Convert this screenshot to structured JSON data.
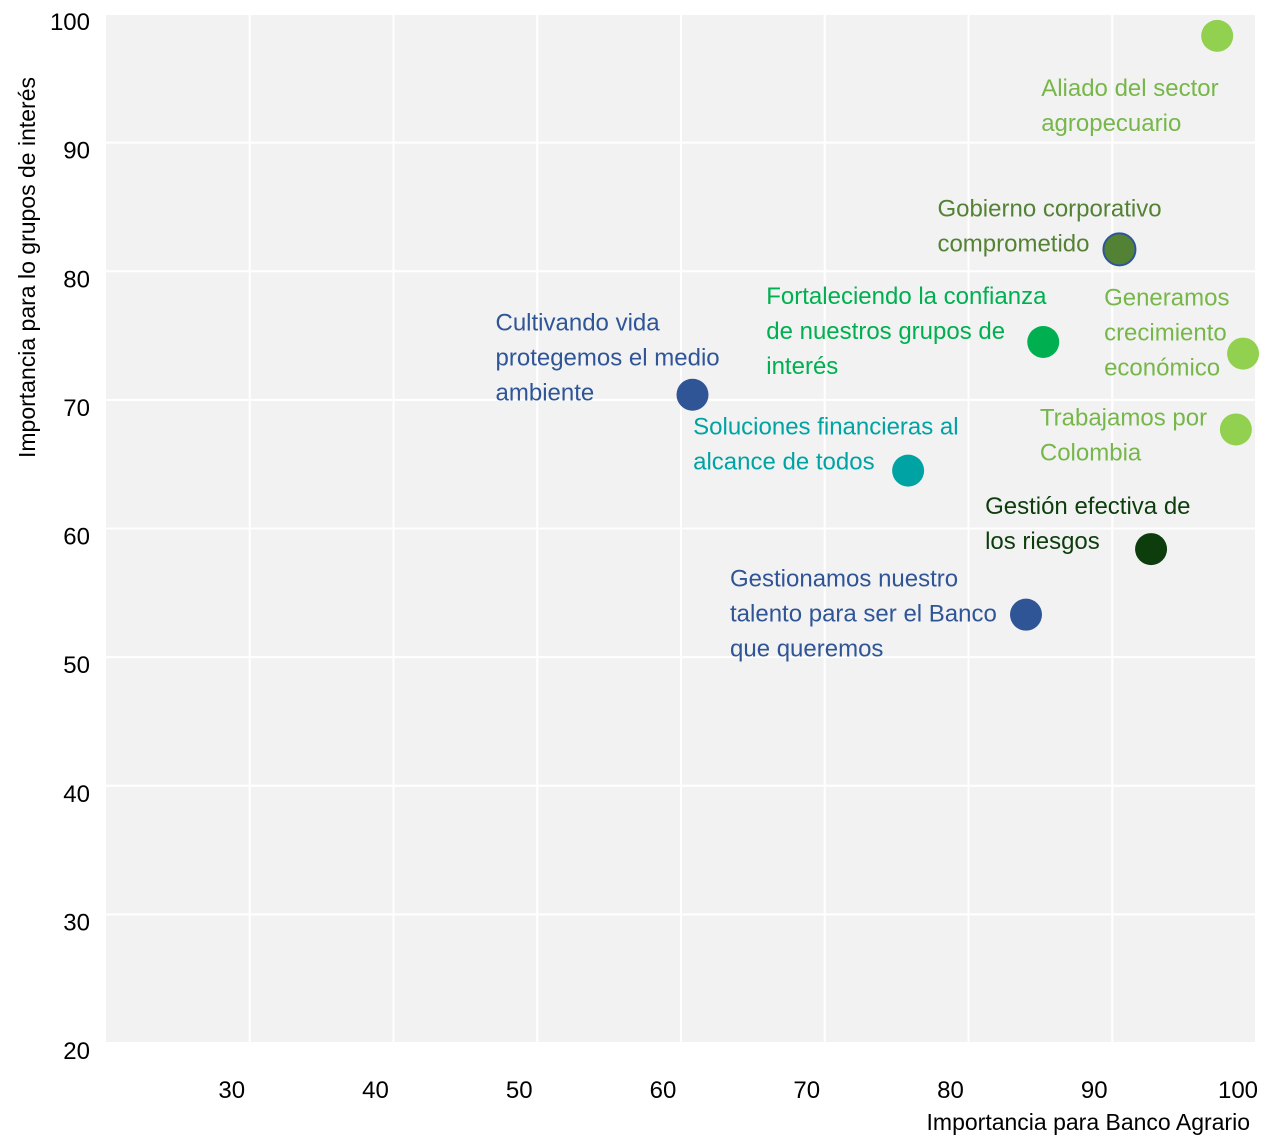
{
  "chart_data": {
    "type": "scatter",
    "title": "",
    "xlabel": "Importancia para Banco Agrario",
    "ylabel": "Importancia para lo grupos de interés",
    "xlim": [
      20,
      100
    ],
    "ylim": [
      20,
      100
    ],
    "x_ticks": [
      30,
      40,
      50,
      60,
      70,
      80,
      90,
      100
    ],
    "y_ticks": [
      20,
      30,
      40,
      50,
      60,
      70,
      80,
      90,
      100
    ],
    "grid": true,
    "background": "#f2f2f2",
    "points": [
      {
        "label_lines": [
          "Aliado del sector",
          "agropecuario"
        ],
        "x": 97.3,
        "y": 98.3,
        "color": "#92d050",
        "label_color": "#77b74a"
      },
      {
        "label_lines": [
          "Gobierno corporativo",
          "comprometido"
        ],
        "x": 90.5,
        "y": 81.7,
        "color": "#548235",
        "outline": "#2f5597",
        "label_color": "#548235"
      },
      {
        "label_lines": [
          "Fortaleciendo la confianza",
          "de nuestros grupos de",
          "interés"
        ],
        "x": 85.2,
        "y": 74.5,
        "color": "#00b050",
        "label_color": "#00b050"
      },
      {
        "label_lines": [
          "Generamos",
          "crecimiento",
          "económico"
        ],
        "x": 99.1,
        "y": 73.6,
        "color": "#92d050",
        "label_color": "#77b74a"
      },
      {
        "label_lines": [
          "Cultivando vida",
          "protegemos el medio",
          "ambiente"
        ],
        "x": 60.8,
        "y": 70.4,
        "color": "#2f5597",
        "label_color": "#2f5597"
      },
      {
        "label_lines": [
          "Trabajamos por",
          "Colombia"
        ],
        "x": 98.6,
        "y": 67.7,
        "color": "#92d050",
        "label_color": "#77b74a"
      },
      {
        "label_lines": [
          "Soluciones financieras al",
          "alcance de todos"
        ],
        "x": 75.8,
        "y": 64.5,
        "color": "#00a3a3",
        "label_color": "#00a3a3"
      },
      {
        "label_lines": [
          "Gestión efectiva de",
          "los riesgos"
        ],
        "x": 92.7,
        "y": 58.4,
        "color": "#0d3d0d",
        "label_color": "#0d3d0d"
      },
      {
        "label_lines": [
          "Gestionamos nuestro",
          "talento para ser el Banco",
          "que queremos"
        ],
        "x": 84.0,
        "y": 53.3,
        "color": "#2f5597",
        "label_color": "#2f5597"
      }
    ]
  }
}
